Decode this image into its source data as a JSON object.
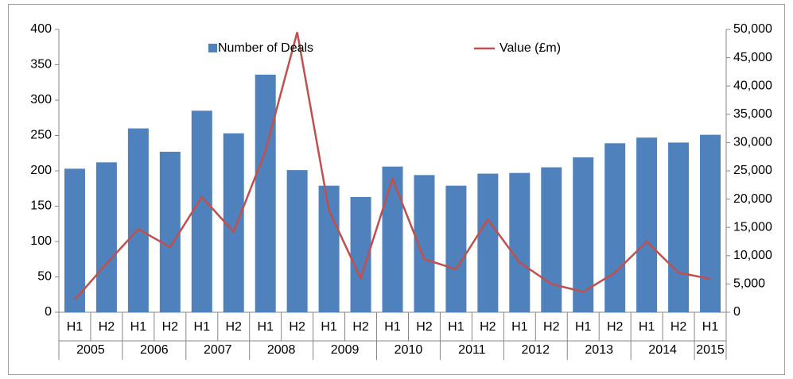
{
  "chart_data": {
    "type": "bar_line",
    "categories": [
      "H1",
      "H2",
      "H1",
      "H2",
      "H1",
      "H2",
      "H1",
      "H2",
      "H1",
      "H2",
      "H1",
      "H2",
      "H1",
      "H2",
      "H1",
      "H2",
      "H1",
      "H2",
      "H1",
      "H2",
      "H1"
    ],
    "category_groups": [
      "2005",
      "2006",
      "2007",
      "2008",
      "2009",
      "2010",
      "2011",
      "2012",
      "2013",
      "2014",
      "2015"
    ],
    "series": [
      {
        "name": "Number of Deals",
        "color": "#4f81bd",
        "kind": "bar",
        "axis": "y",
        "values": [
          203,
          212,
          260,
          227,
          285,
          253,
          336,
          201,
          179,
          163,
          206,
          194,
          179,
          196,
          197,
          205,
          219,
          239,
          247,
          240,
          251
        ]
      },
      {
        "name": "Value (£m)",
        "color": "#c0504d",
        "kind": "line",
        "axis": "y2",
        "values": [
          2200,
          8600,
          14700,
          11500,
          20400,
          14200,
          28500,
          49500,
          18000,
          6000,
          23600,
          9400,
          7600,
          16400,
          8800,
          5000,
          3600,
          7000,
          12500,
          7000,
          5900
        ]
      }
    ],
    "ylim": [
      0,
      400
    ],
    "yticks": [
      0,
      50,
      100,
      150,
      200,
      250,
      300,
      350,
      400
    ],
    "y2lim": [
      0,
      50000
    ],
    "y2ticks": [
      0,
      {
        "value": 5000,
        "label": "5,000"
      },
      {
        "value": 10000,
        "label": "10,000"
      },
      {
        "value": 15000,
        "label": "15,000"
      },
      {
        "value": 20000,
        "label": "20,000"
      },
      {
        "value": 25000,
        "label": "25,000"
      },
      {
        "value": 30000,
        "label": "30,000"
      },
      {
        "value": 35000,
        "label": "35,000"
      },
      {
        "value": 40000,
        "label": "40,000"
      },
      {
        "value": 45000,
        "label": "45,000"
      },
      {
        "value": 50000,
        "label": "50,000"
      }
    ],
    "legend": "top",
    "grid": false
  }
}
